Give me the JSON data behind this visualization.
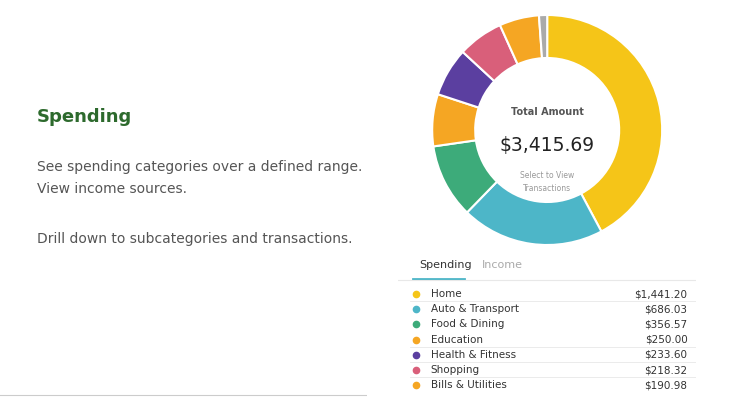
{
  "title": "Spending",
  "title_color": "#2d6a2d",
  "body_text_1": "See spending categories over a defined range.\nView income sources.",
  "body_text_2": "Drill down to subcategories and transactions.",
  "body_text_color": "#555555",
  "donut_total_label": "Total Amount",
  "donut_total_value": "$3,415.69",
  "donut_subtitle": "Select to View\nTransactions",
  "donut_slices": [
    1441.2,
    686.03,
    356.57,
    250.0,
    233.6,
    218.32,
    190.98,
    38.99
  ],
  "donut_colors": [
    "#f5c518",
    "#4db6c8",
    "#3dab7a",
    "#f5a623",
    "#5b3fa0",
    "#d95f7a",
    "#f5a623",
    "#aaaaaa"
  ],
  "tab_spending": "Spending",
  "tab_income": "Income",
  "tab_underline_color": "#4db6c8",
  "categories": [
    "Home",
    "Auto & Transport",
    "Food & Dining",
    "Education",
    "Health & Fitness",
    "Shopping",
    "Bills & Utilities"
  ],
  "amounts": [
    "$1,441.20",
    "$686.03",
    "$356.57",
    "$250.00",
    "$233.60",
    "$218.32",
    "$190.98"
  ],
  "dot_colors": [
    "#f5c518",
    "#4db6c8",
    "#3dab7a",
    "#f5a623",
    "#5b3fa0",
    "#d95f7a",
    "#f5a623"
  ],
  "bg_color": "#ffffff",
  "phone_border_color": "#1a1a1a",
  "separator_color": "#e8e8e8"
}
